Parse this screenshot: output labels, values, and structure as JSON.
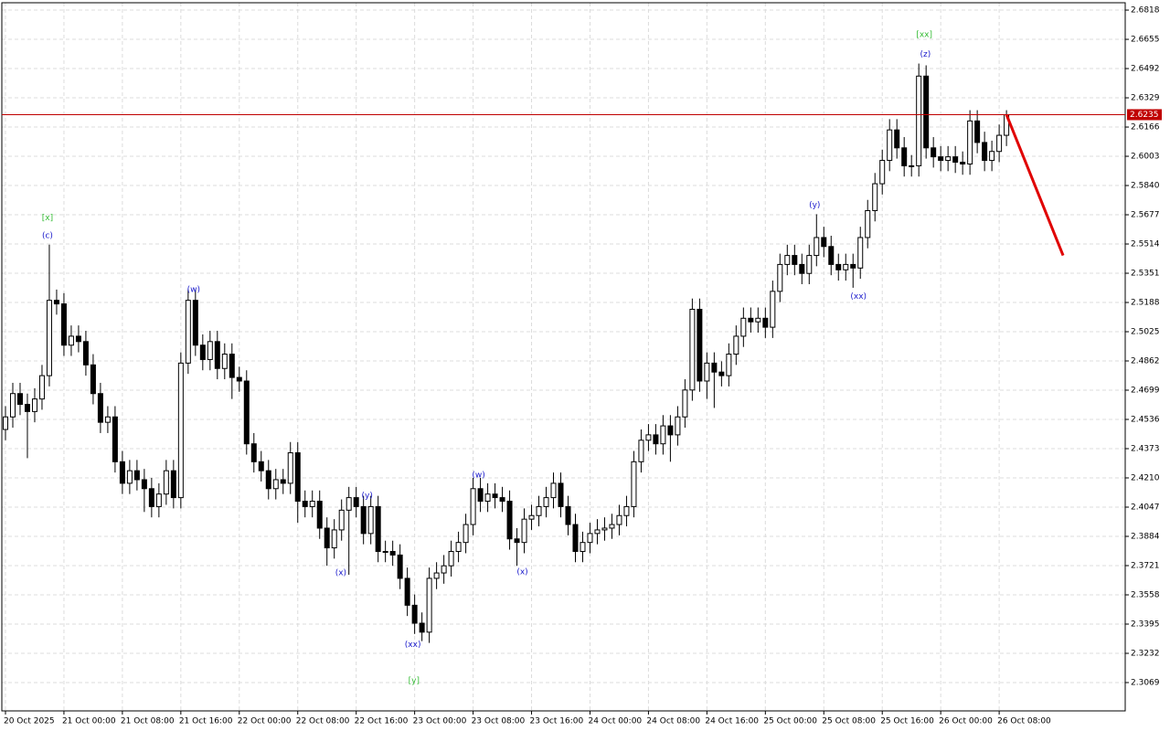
{
  "chart_data": {
    "type": "candlestick",
    "ylim": [
      2.2911,
      2.6859
    ],
    "xlim": [
      -0.5,
      153.25
    ],
    "yticks": [
      2.6818,
      2.6655,
      2.6492,
      2.6329,
      2.6166,
      2.6003,
      {
        "value": 2.584,
        "label": "2.5840"
      },
      2.5677,
      2.5514,
      2.5351,
      2.5188,
      2.5025,
      2.4862,
      2.4699,
      2.4536,
      2.4373,
      {
        "value": 2.421,
        "label": "2.4210"
      },
      2.4047,
      2.3884,
      2.3721,
      2.3558,
      2.3395,
      2.3232,
      2.3069
    ],
    "xticks": [
      {
        "value": 0,
        "label": "20 Oct 2025"
      },
      {
        "value": 8,
        "label": "21 Oct 00:00"
      },
      {
        "value": 16,
        "label": "21 Oct 08:00"
      },
      {
        "value": 24,
        "label": "21 Oct 16:00"
      },
      {
        "value": 32,
        "label": "22 Oct 00:00"
      },
      {
        "value": 40,
        "label": "22 Oct 08:00"
      },
      {
        "value": 48,
        "label": "22 Oct 16:00"
      },
      {
        "value": 56,
        "label": "23 Oct 00:00"
      },
      {
        "value": 64,
        "label": "23 Oct 08:00"
      },
      {
        "value": 72,
        "label": "23 Oct 16:00"
      },
      {
        "value": 80,
        "label": "24 Oct 00:00"
      },
      {
        "value": 88,
        "label": "24 Oct 08:00"
      },
      {
        "value": 96,
        "label": "24 Oct 16:00"
      },
      {
        "value": 104,
        "label": "25 Oct 00:00"
      },
      {
        "value": 112,
        "label": "25 Oct 08:00"
      },
      {
        "value": 120,
        "label": "25 Oct 16:00"
      },
      {
        "value": 128,
        "label": "26 Oct 00:00"
      },
      {
        "value": 136,
        "label": "26 Oct 08:00"
      }
    ],
    "grid": true,
    "up_color": "#ffffff",
    "down_color": "#000000",
    "line_color": "#000000",
    "grid_color": "#dcdcdc",
    "open": [
      2.448,
      2.455,
      2.468,
      2.462,
      2.458,
      2.465,
      2.478,
      2.52,
      2.518,
      2.495,
      2.5,
      2.497,
      2.484,
      2.468,
      2.452,
      2.455,
      2.43,
      2.418,
      2.425,
      2.42,
      2.415,
      2.405,
      2.412,
      2.425,
      2.41,
      2.485,
      2.52,
      2.495,
      2.487,
      2.497,
      2.482,
      2.49,
      2.477,
      2.475,
      2.44,
      2.43,
      2.425,
      2.415,
      2.42,
      2.418,
      2.435,
      2.408,
      2.405,
      2.408,
      2.393,
      2.382,
      2.392,
      2.403,
      2.41,
      2.405,
      2.39,
      2.405,
      2.38,
      2.38,
      2.378,
      2.365,
      2.35,
      2.34,
      2.335,
      2.365,
      2.368,
      2.372,
      2.38,
      2.385,
      2.395,
      2.415,
      2.408,
      2.412,
      2.41,
      2.408,
      2.387,
      2.385,
      2.398,
      2.4,
      2.405,
      2.41,
      2.418,
      2.405,
      2.395,
      2.38,
      2.385,
      2.39,
      2.392,
      2.393,
      2.395,
      2.4,
      2.405,
      2.43,
      2.442,
      2.445,
      2.44,
      2.45,
      2.445,
      2.455,
      2.47,
      2.515,
      2.475,
      2.485,
      2.48,
      2.478,
      2.49,
      2.5,
      2.51,
      2.508,
      2.51,
      2.505,
      2.525,
      2.54,
      2.545,
      2.54,
      2.535,
      2.545,
      2.555,
      2.55,
      2.54,
      2.537,
      2.54,
      2.538,
      2.555,
      2.57,
      2.585,
      2.598,
      2.615,
      2.605,
      2.595,
      2.595,
      2.645,
      2.605,
      2.6,
      2.598,
      2.6,
      2.597,
      2.596,
      2.62,
      2.608,
      2.598,
      2.603,
      2.612
    ],
    "high": [
      2.461,
      2.474,
      2.474,
      2.468,
      2.471,
      2.484,
      2.551,
      2.526,
      2.524,
      2.506,
      2.506,
      2.503,
      2.49,
      2.474,
      2.461,
      2.461,
      2.436,
      2.431,
      2.431,
      2.426,
      2.421,
      2.418,
      2.431,
      2.431,
      2.491,
      2.526,
      2.526,
      2.501,
      2.503,
      2.503,
      2.496,
      2.496,
      2.483,
      2.481,
      2.446,
      2.436,
      2.431,
      2.426,
      2.426,
      2.441,
      2.441,
      2.414,
      2.414,
      2.414,
      2.399,
      2.398,
      2.409,
      2.416,
      2.416,
      2.411,
      2.411,
      2.411,
      2.386,
      2.386,
      2.384,
      2.371,
      2.356,
      2.346,
      2.371,
      2.374,
      2.378,
      2.386,
      2.391,
      2.401,
      2.421,
      2.421,
      2.418,
      2.418,
      2.416,
      2.414,
      2.393,
      2.404,
      2.406,
      2.411,
      2.416,
      2.424,
      2.424,
      2.411,
      2.401,
      2.391,
      2.396,
      2.398,
      2.399,
      2.401,
      2.406,
      2.411,
      2.436,
      2.448,
      2.451,
      2.451,
      2.456,
      2.456,
      2.461,
      2.476,
      2.521,
      2.521,
      2.491,
      2.491,
      2.486,
      2.496,
      2.506,
      2.516,
      2.516,
      2.516,
      2.516,
      2.531,
      2.546,
      2.551,
      2.551,
      2.546,
      2.551,
      2.568,
      2.561,
      2.556,
      2.546,
      2.546,
      2.546,
      2.561,
      2.576,
      2.591,
      2.604,
      2.621,
      2.621,
      2.611,
      2.601,
      2.652,
      2.651,
      2.611,
      2.606,
      2.606,
      2.606,
      2.603,
      2.626,
      2.626,
      2.614,
      2.609,
      2.618,
      2.626
    ],
    "low": [
      2.442,
      2.449,
      2.456,
      2.432,
      2.452,
      2.459,
      2.472,
      2.512,
      2.489,
      2.489,
      2.491,
      2.478,
      2.462,
      2.446,
      2.446,
      2.424,
      2.412,
      2.412,
      2.414,
      2.402,
      2.399,
      2.399,
      2.406,
      2.404,
      2.404,
      2.479,
      2.489,
      2.481,
      2.481,
      2.476,
      2.476,
      2.465,
      2.469,
      2.434,
      2.424,
      2.419,
      2.409,
      2.409,
      2.412,
      2.412,
      2.396,
      2.399,
      2.399,
      2.387,
      2.372,
      2.376,
      2.386,
      2.367,
      2.399,
      2.384,
      2.384,
      2.374,
      2.374,
      2.372,
      2.359,
      2.344,
      2.334,
      2.33,
      2.329,
      2.359,
      2.362,
      2.366,
      2.374,
      2.379,
      2.389,
      2.402,
      2.402,
      2.404,
      2.402,
      2.381,
      2.372,
      2.379,
      2.392,
      2.394,
      2.399,
      2.404,
      2.399,
      2.389,
      2.374,
      2.374,
      2.379,
      2.384,
      2.386,
      2.387,
      2.389,
      2.394,
      2.399,
      2.424,
      2.436,
      2.434,
      2.434,
      2.43,
      2.439,
      2.449,
      2.464,
      2.469,
      2.465,
      2.46,
      2.472,
      2.472,
      2.484,
      2.494,
      2.502,
      2.502,
      2.499,
      2.499,
      2.519,
      2.534,
      2.534,
      2.529,
      2.529,
      2.539,
      2.544,
      2.534,
      2.531,
      2.531,
      2.527,
      2.532,
      2.549,
      2.564,
      2.579,
      2.592,
      2.599,
      2.589,
      2.589,
      2.589,
      2.599,
      2.594,
      2.592,
      2.592,
      2.591,
      2.59,
      2.59,
      2.602,
      2.592,
      2.592,
      2.597,
      2.606
    ],
    "close": [
      2.455,
      2.468,
      2.462,
      2.458,
      2.465,
      2.478,
      2.52,
      2.518,
      2.495,
      2.5,
      2.497,
      2.484,
      2.468,
      2.452,
      2.455,
      2.43,
      2.418,
      2.425,
      2.42,
      2.415,
      2.405,
      2.412,
      2.425,
      2.41,
      2.485,
      2.52,
      2.495,
      2.487,
      2.497,
      2.482,
      2.49,
      2.477,
      2.475,
      2.44,
      2.43,
      2.425,
      2.415,
      2.42,
      2.418,
      2.435,
      2.408,
      2.405,
      2.408,
      2.393,
      2.382,
      2.392,
      2.403,
      2.41,
      2.405,
      2.39,
      2.405,
      2.38,
      2.38,
      2.378,
      2.365,
      2.35,
      2.34,
      2.335,
      2.365,
      2.368,
      2.372,
      2.38,
      2.385,
      2.395,
      2.415,
      2.408,
      2.412,
      2.41,
      2.408,
      2.387,
      2.385,
      2.398,
      2.4,
      2.405,
      2.41,
      2.418,
      2.405,
      2.395,
      2.38,
      2.385,
      2.39,
      2.392,
      2.393,
      2.395,
      2.4,
      2.405,
      2.43,
      2.442,
      2.445,
      2.44,
      2.45,
      2.445,
      2.455,
      2.47,
      2.515,
      2.475,
      2.485,
      2.48,
      2.478,
      2.49,
      2.5,
      2.51,
      2.508,
      2.51,
      2.505,
      2.525,
      2.54,
      2.545,
      2.54,
      2.535,
      2.545,
      2.555,
      2.55,
      2.54,
      2.537,
      2.54,
      2.538,
      2.555,
      2.57,
      2.585,
      2.598,
      2.615,
      2.605,
      2.595,
      2.595,
      2.645,
      2.605,
      2.6,
      2.598,
      2.6,
      2.597,
      2.596,
      2.62,
      2.608,
      2.598,
      2.603,
      2.612,
      2.6235
    ],
    "current_price": {
      "value": 2.6235,
      "label": "2.6235",
      "color": "#c00000"
    },
    "forecast": {
      "x": [
        137,
        144.75
      ],
      "values": [
        2.6235,
        2.545
      ],
      "color": "#e00000"
    },
    "annotations": [
      {
        "text": "[x]",
        "x": 5.75,
        "y": 2.566,
        "color": "#33bb33"
      },
      {
        "text": "(c)",
        "x": 5.75,
        "y": 2.556,
        "color": "#1a1acc"
      },
      {
        "text": "(w)",
        "x": 25.75,
        "y": 2.526,
        "color": "#1a1acc"
      },
      {
        "text": "(y)",
        "x": 49.5,
        "y": 2.411,
        "color": "#1a1acc"
      },
      {
        "text": "(x)",
        "x": 45.9,
        "y": 2.368,
        "color": "#1a1acc"
      },
      {
        "text": "(xx)",
        "x": 55.75,
        "y": 2.328,
        "color": "#1a1acc"
      },
      {
        "text": "[y]",
        "x": 55.9,
        "y": 2.308,
        "color": "#33bb33"
      },
      {
        "text": "(w)",
        "x": 64.75,
        "y": 2.4225,
        "color": "#1a1acc"
      },
      {
        "text": "(x)",
        "x": 70.75,
        "y": 2.3685,
        "color": "#1a1acc"
      },
      {
        "text": "(y)",
        "x": 110.75,
        "y": 2.573,
        "color": "#1a1acc"
      },
      {
        "text": "(xx)",
        "x": 116.75,
        "y": 2.522,
        "color": "#1a1acc"
      },
      {
        "text": "(z)",
        "x": 125.9,
        "y": 2.657,
        "color": "#1a1acc"
      },
      {
        "text": "[xx]",
        "x": 125.75,
        "y": 2.668,
        "color": "#33bb33"
      }
    ]
  }
}
